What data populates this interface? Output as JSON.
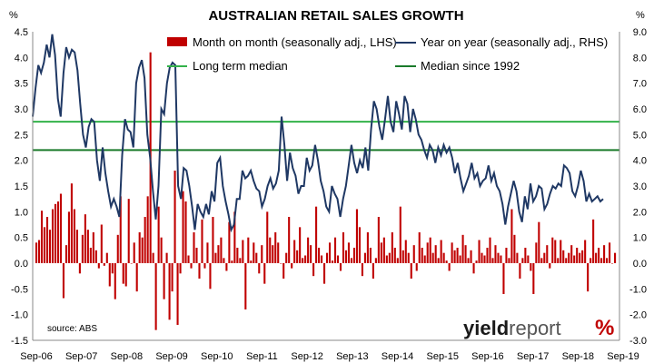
{
  "chart_data": {
    "type": "bar+line",
    "title": "AUSTRALIAN RETAIL SALES GROWTH",
    "left_axis": {
      "unit_label": "%",
      "min": -1.5,
      "max": 4.5,
      "step": 0.5,
      "ticks": [
        "-1.5",
        "-1.0",
        "-0.5",
        "0.0",
        "0.5",
        "1.0",
        "1.5",
        "2.0",
        "2.5",
        "3.0",
        "3.5",
        "4.0",
        "4.5"
      ]
    },
    "right_axis": {
      "unit_label": "%",
      "min": -3.0,
      "max": 9.0,
      "step": 1.0,
      "ticks": [
        "-3.0",
        "-2.0",
        "-1.0",
        "0.0",
        "1.0",
        "2.0",
        "3.0",
        "4.0",
        "5.0",
        "6.0",
        "7.0",
        "8.0",
        "9.0"
      ]
    },
    "x_labels": [
      "Sep-06",
      "Sep-07",
      "Sep-08",
      "Sep-09",
      "Sep-10",
      "Sep-11",
      "Sep-12",
      "Sep-13",
      "Sep-14",
      "Sep-15",
      "Sep-16",
      "Sep-17",
      "Sep-18",
      "Sep-19"
    ],
    "legend": [
      {
        "name": "Month on month (seasonally adj., LHS)",
        "kind": "bar",
        "color": "#c00000"
      },
      {
        "name": "Year on year (seasonally adj., RHS)",
        "kind": "line",
        "color": "#1f3864"
      },
      {
        "name": "Long term median",
        "kind": "line",
        "color": "#33b24a"
      },
      {
        "name": "Median since 1992",
        "kind": "line",
        "color": "#1a7a2a"
      }
    ],
    "long_term_median_rhs": 5.5,
    "median_since_1992_rhs": 4.4,
    "mom_series": [
      0.4,
      0.45,
      1.02,
      0.7,
      0.9,
      0.65,
      1.05,
      1.15,
      1.2,
      1.35,
      -0.68,
      0.35,
      1.0,
      1.55,
      1.05,
      0.65,
      -0.2,
      0.55,
      0.95,
      0.65,
      0.3,
      0.6,
      0.25,
      -0.1,
      0.75,
      -0.05,
      0.2,
      -0.45,
      -0.2,
      -0.7,
      0.55,
      1.3,
      -0.4,
      -0.45,
      1.25,
      0.0,
      0.4,
      -0.55,
      0.6,
      0.5,
      0.9,
      1.3,
      4.1,
      0.2,
      -1.3,
      1.1,
      0.5,
      -0.7,
      0.2,
      -1.1,
      -0.55,
      1.8,
      -1.2,
      -0.2,
      1.4,
      1.2,
      0.15,
      -0.1,
      0.6,
      0.3,
      -0.3,
      0.85,
      -0.1,
      0.4,
      -0.5,
      0.9,
      0.2,
      0.35,
      0.5,
      0.1,
      -0.15,
      0.8,
      0.05,
      1.0,
      0.3,
      0.1,
      0.45,
      -0.9,
      0.5,
      0.05,
      0.4,
      0.2,
      -0.2,
      0.35,
      -0.4,
      1.0,
      0.5,
      0.35,
      0.6,
      0.4,
      0.0,
      -0.3,
      0.2,
      0.9,
      -0.1,
      0.45,
      0.25,
      0.7,
      0.1,
      0.15,
      0.5,
      0.35,
      -0.25,
      1.1,
      0.3,
      0.15,
      -0.4,
      0.2,
      0.4,
      0.05,
      0.5,
      0.15,
      -0.15,
      0.6,
      0.25,
      0.4,
      0.1,
      0.3,
      1.05,
      0.7,
      -0.25,
      0.2,
      0.6,
      0.3,
      -0.3,
      0.1,
      0.9,
      0.4,
      0.5,
      0.15,
      0.2,
      0.6,
      0.3,
      0.1,
      1.1,
      0.25,
      0.45,
      0.2,
      -0.3,
      0.35,
      -0.15,
      0.6,
      0.3,
      0.15,
      0.4,
      0.5,
      0.2,
      0.35,
      0.1,
      0.45,
      0.2,
      0.05,
      -0.15,
      0.4,
      0.25,
      0.3,
      0.15,
      0.55,
      0.35,
      0.1,
      0.25,
      -0.2,
      0.05,
      0.45,
      0.2,
      0.15,
      0.3,
      0.5,
      0.1,
      0.35,
      0.2,
      0.15,
      -0.6,
      0.3,
      0.1,
      1.05,
      0.55,
      0.2,
      -0.3,
      0.1,
      0.3,
      0.15,
      -0.15,
      -0.6,
      0.4,
      0.8,
      0.1,
      0.2,
      0.35,
      -0.1,
      0.5,
      0.45,
      0.1,
      0.45,
      0.25,
      0.1,
      0.2,
      0.35,
      0.15,
      0.3,
      0.2,
      0.25,
      0.45,
      -0.55,
      0.1,
      0.85,
      0.2,
      0.3,
      0.1,
      0.35,
      0.1,
      0.4,
      0.0,
      0.2
    ],
    "yoy_series": [
      5.7,
      6.8,
      7.7,
      7.4,
      7.8,
      8.5,
      8.0,
      8.9,
      8.1,
      6.4,
      5.7,
      7.4,
      8.4,
      8.0,
      8.3,
      8.2,
      7.5,
      6.2,
      5.0,
      4.5,
      5.3,
      5.6,
      5.5,
      4.0,
      3.2,
      4.5,
      3.5,
      2.8,
      2.2,
      2.5,
      2.2,
      1.8,
      4.2,
      5.6,
      5.2,
      5.1,
      4.5,
      7.0,
      7.6,
      7.9,
      7.2,
      5.0,
      4.1,
      2.8,
      1.7,
      3.0,
      6.0,
      5.8,
      7.0,
      7.6,
      7.8,
      7.7,
      3.0,
      2.5,
      3.7,
      3.6,
      3.0,
      2.2,
      1.3,
      2.3,
      2.0,
      1.8,
      2.3,
      1.9,
      2.8,
      2.4,
      3.9,
      4.1,
      3.0,
      2.4,
      1.9,
      1.3,
      1.5,
      2.5,
      2.5,
      3.6,
      3.3,
      3.4,
      3.6,
      3.2,
      2.9,
      2.8,
      2.2,
      2.5,
      3.0,
      3.3,
      2.9,
      3.1,
      3.6,
      5.7,
      4.6,
      3.2,
      4.3,
      3.7,
      3.4,
      2.7,
      3.0,
      3.0,
      4.1,
      3.6,
      3.8,
      4.6,
      4.0,
      3.2,
      2.8,
      2.2,
      2.0,
      3.0,
      2.7,
      2.5,
      1.8,
      2.5,
      3.0,
      3.8,
      4.6,
      3.9,
      3.5,
      4.0,
      3.7,
      4.5,
      3.6,
      5.2,
      6.3,
      6.0,
      5.3,
      4.8,
      5.6,
      6.5,
      5.5,
      5.1,
      6.3,
      5.8,
      5.2,
      6.5,
      6.2,
      5.1,
      6.0,
      5.6,
      5.0,
      4.8,
      4.4,
      4.1,
      4.6,
      4.4,
      3.9,
      4.5,
      4.2,
      4.6,
      4.3,
      4.5,
      4.1,
      3.5,
      3.9,
      3.3,
      2.8,
      3.1,
      3.4,
      3.9,
      3.3,
      3.5,
      3.0,
      3.2,
      3.3,
      3.8,
      3.2,
      3.5,
      3.0,
      2.8,
      2.3,
      1.5,
      2.2,
      2.7,
      3.2,
      2.8,
      2.0,
      1.6,
      2.6,
      2.1,
      3.1,
      2.4,
      2.6,
      3.0,
      2.9,
      2.1,
      2.3,
      2.7,
      3.0,
      2.9,
      3.1,
      3.0,
      3.8,
      3.7,
      3.5,
      2.8,
      2.6,
      3.0,
      3.6,
      3.2,
      2.4,
      2.7,
      2.4,
      2.5,
      2.6,
      2.4,
      2.5
    ]
  },
  "source_label": "source: ABS",
  "logo": {
    "part1": "yield",
    "part2": "report",
    "symbol": "%"
  },
  "colors": {
    "bar": "#c00000",
    "yoy": "#1f3864",
    "long_median": "#33b24a",
    "median_1992": "#1a7a2a"
  }
}
